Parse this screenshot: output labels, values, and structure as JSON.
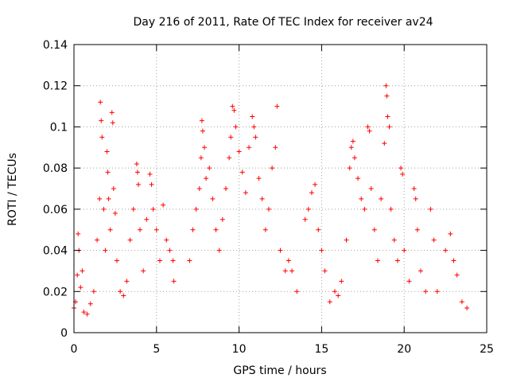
{
  "chart_data": {
    "type": "scatter",
    "title": "Day 216 of 2011, Rate Of TEC Index for receiver av24",
    "xlabel": "GPS time / hours",
    "ylabel": "ROTI / TECUs",
    "xlim": [
      0,
      25
    ],
    "ylim": [
      0,
      0.14
    ],
    "x_ticks": [
      0,
      5,
      10,
      15,
      20,
      25
    ],
    "y_ticks": [
      0,
      0.02,
      0.04,
      0.06,
      0.08,
      0.1,
      0.12,
      0.14
    ],
    "x_tick_labels": [
      "0",
      "5",
      "10",
      "15",
      "20",
      "25"
    ],
    "y_tick_labels": [
      "0",
      "0.02",
      "0.04",
      "0.06",
      "0.08",
      "0.1",
      "0.12",
      "0.14"
    ],
    "grid": true,
    "marker": "plus",
    "color": "#ff0000",
    "series": [
      {
        "points": [
          [
            0.0,
            0.012
          ],
          [
            0.1,
            0.015
          ],
          [
            0.2,
            0.028
          ],
          [
            0.25,
            0.048
          ],
          [
            0.3,
            0.04
          ],
          [
            0.4,
            0.022
          ],
          [
            0.5,
            0.03
          ],
          [
            0.6,
            0.01
          ],
          [
            0.8,
            0.009
          ],
          [
            1.0,
            0.014
          ],
          [
            1.2,
            0.02
          ],
          [
            1.4,
            0.045
          ],
          [
            1.55,
            0.065
          ],
          [
            1.6,
            0.112
          ],
          [
            1.65,
            0.103
          ],
          [
            1.7,
            0.095
          ],
          [
            1.8,
            0.06
          ],
          [
            1.9,
            0.04
          ],
          [
            2.0,
            0.088
          ],
          [
            2.05,
            0.078
          ],
          [
            2.1,
            0.065
          ],
          [
            2.2,
            0.05
          ],
          [
            2.3,
            0.107
          ],
          [
            2.35,
            0.102
          ],
          [
            2.4,
            0.07
          ],
          [
            2.5,
            0.058
          ],
          [
            2.6,
            0.035
          ],
          [
            2.8,
            0.02
          ],
          [
            3.0,
            0.018
          ],
          [
            3.2,
            0.025
          ],
          [
            3.4,
            0.045
          ],
          [
            3.6,
            0.06
          ],
          [
            3.8,
            0.082
          ],
          [
            3.85,
            0.078
          ],
          [
            3.9,
            0.072
          ],
          [
            4.0,
            0.05
          ],
          [
            4.2,
            0.03
          ],
          [
            4.4,
            0.055
          ],
          [
            4.6,
            0.077
          ],
          [
            4.7,
            0.072
          ],
          [
            4.8,
            0.06
          ],
          [
            5.0,
            0.05
          ],
          [
            5.2,
            0.035
          ],
          [
            5.4,
            0.062
          ],
          [
            5.6,
            0.045
          ],
          [
            5.8,
            0.04
          ],
          [
            6.0,
            0.035
          ],
          [
            6.05,
            0.025
          ],
          [
            7.0,
            0.035
          ],
          [
            7.2,
            0.05
          ],
          [
            7.4,
            0.06
          ],
          [
            7.6,
            0.07
          ],
          [
            7.7,
            0.085
          ],
          [
            7.75,
            0.103
          ],
          [
            7.8,
            0.098
          ],
          [
            7.9,
            0.09
          ],
          [
            8.0,
            0.075
          ],
          [
            8.2,
            0.08
          ],
          [
            8.4,
            0.065
          ],
          [
            8.6,
            0.05
          ],
          [
            8.8,
            0.04
          ],
          [
            9.0,
            0.055
          ],
          [
            9.2,
            0.07
          ],
          [
            9.4,
            0.085
          ],
          [
            9.5,
            0.095
          ],
          [
            9.6,
            0.11
          ],
          [
            9.7,
            0.108
          ],
          [
            9.8,
            0.1
          ],
          [
            10.0,
            0.088
          ],
          [
            10.2,
            0.078
          ],
          [
            10.4,
            0.068
          ],
          [
            10.6,
            0.09
          ],
          [
            10.8,
            0.105
          ],
          [
            10.9,
            0.1
          ],
          [
            11.0,
            0.095
          ],
          [
            11.2,
            0.075
          ],
          [
            11.4,
            0.065
          ],
          [
            11.6,
            0.05
          ],
          [
            11.8,
            0.06
          ],
          [
            12.0,
            0.08
          ],
          [
            12.2,
            0.09
          ],
          [
            12.3,
            0.11
          ],
          [
            12.5,
            0.04
          ],
          [
            12.8,
            0.03
          ],
          [
            13.0,
            0.035
          ],
          [
            13.2,
            0.03
          ],
          [
            13.5,
            0.02
          ],
          [
            14.0,
            0.055
          ],
          [
            14.2,
            0.06
          ],
          [
            14.4,
            0.068
          ],
          [
            14.6,
            0.072
          ],
          [
            14.8,
            0.05
          ],
          [
            15.0,
            0.04
          ],
          [
            15.2,
            0.03
          ],
          [
            15.5,
            0.015
          ],
          [
            15.8,
            0.02
          ],
          [
            16.0,
            0.018
          ],
          [
            16.2,
            0.025
          ],
          [
            16.5,
            0.045
          ],
          [
            16.7,
            0.08
          ],
          [
            16.8,
            0.09
          ],
          [
            16.9,
            0.093
          ],
          [
            17.0,
            0.085
          ],
          [
            17.2,
            0.075
          ],
          [
            17.4,
            0.065
          ],
          [
            17.6,
            0.06
          ],
          [
            17.8,
            0.1
          ],
          [
            17.9,
            0.098
          ],
          [
            18.0,
            0.07
          ],
          [
            18.2,
            0.05
          ],
          [
            18.4,
            0.035
          ],
          [
            18.6,
            0.065
          ],
          [
            18.8,
            0.092
          ],
          [
            18.9,
            0.12
          ],
          [
            18.95,
            0.115
          ],
          [
            19.0,
            0.105
          ],
          [
            19.1,
            0.1
          ],
          [
            19.2,
            0.06
          ],
          [
            19.4,
            0.045
          ],
          [
            19.6,
            0.035
          ],
          [
            19.8,
            0.08
          ],
          [
            19.9,
            0.077
          ],
          [
            20.0,
            0.04
          ],
          [
            20.3,
            0.025
          ],
          [
            20.6,
            0.07
          ],
          [
            20.7,
            0.065
          ],
          [
            20.8,
            0.05
          ],
          [
            21.0,
            0.03
          ],
          [
            21.3,
            0.02
          ],
          [
            21.6,
            0.06
          ],
          [
            21.8,
            0.045
          ],
          [
            22.0,
            0.02
          ],
          [
            22.5,
            0.04
          ],
          [
            22.8,
            0.048
          ],
          [
            23.0,
            0.035
          ],
          [
            23.2,
            0.028
          ],
          [
            23.5,
            0.015
          ],
          [
            23.8,
            0.012
          ]
        ]
      }
    ]
  }
}
